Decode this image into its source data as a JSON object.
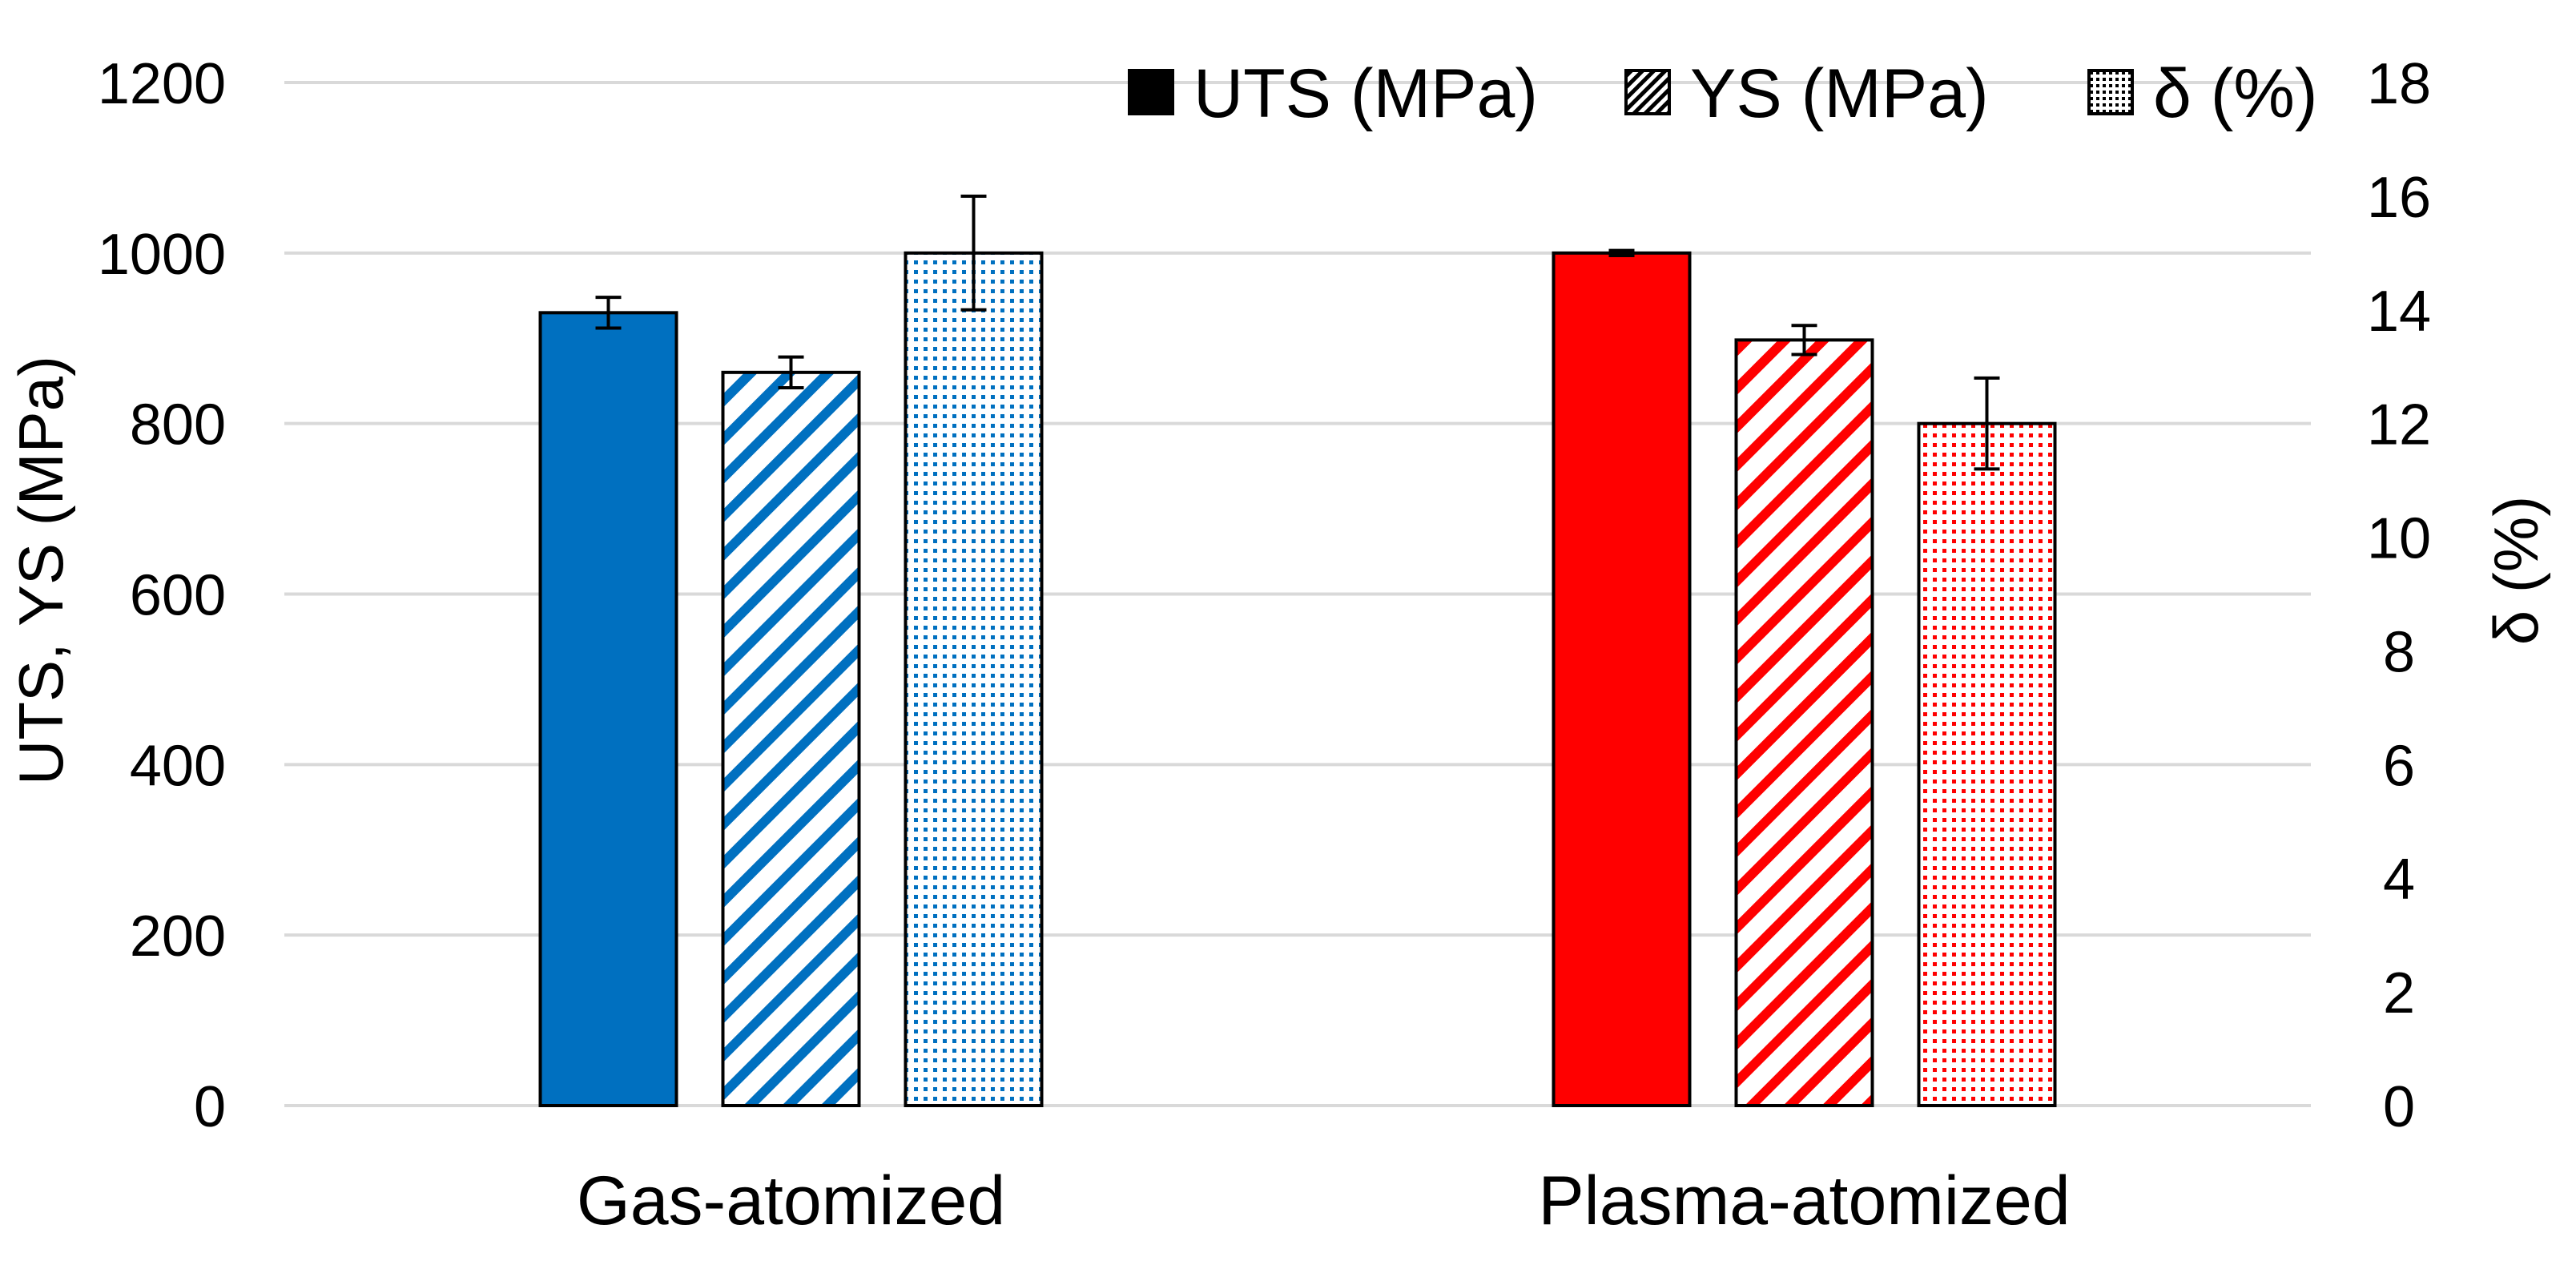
{
  "chart_data": {
    "type": "bar",
    "categories": [
      "Gas-atomized",
      "Plasma-atomized"
    ],
    "category_colors": [
      "#0070C0",
      "#FF0000"
    ],
    "series": [
      {
        "name": "UTS (MPa)",
        "legend_label": "UTS (MPa)",
        "axis": "left",
        "pattern": "solid",
        "values": [
          930,
          1000
        ],
        "errors": [
          18,
          3
        ]
      },
      {
        "name": "YS (MPa)",
        "legend_label": "YS (MPa)",
        "axis": "left",
        "pattern": "hatch",
        "values": [
          860,
          898
        ],
        "errors": [
          18,
          17
        ]
      },
      {
        "name": "δ (%)",
        "legend_label": "δ (%)",
        "axis": "right",
        "pattern": "dots",
        "values": [
          15.0,
          12.0
        ],
        "errors": [
          1.0,
          0.8
        ]
      }
    ],
    "ylabel": "UTS, YS (MPa)",
    "y2label": "δ (%)",
    "ylim": [
      0,
      1200
    ],
    "y2lim": [
      0,
      18
    ],
    "yticks": [
      "0",
      "200",
      "400",
      "600",
      "800",
      "1000",
      "1200"
    ],
    "y2ticks": [
      "0",
      "2",
      "4",
      "6",
      "8",
      "10",
      "12",
      "14",
      "16",
      "18"
    ],
    "grid": true,
    "legend_position": "top-right"
  }
}
